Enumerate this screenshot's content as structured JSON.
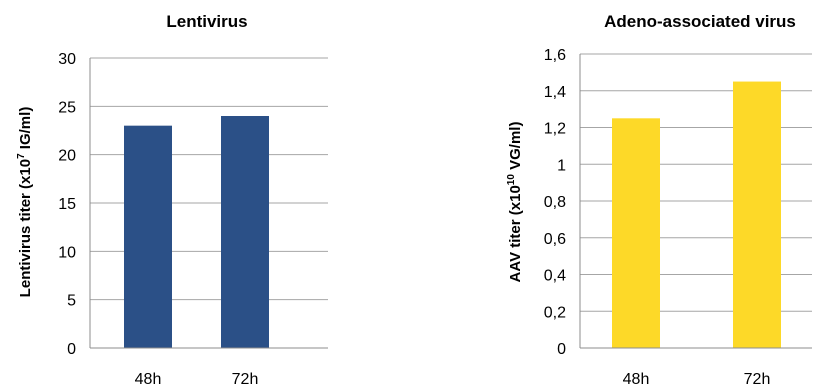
{
  "chart_data": [
    {
      "type": "bar",
      "title": "Lentivirus",
      "ylabel": "Lentivirus titer (x10⁷ IG/ml)",
      "ylabel_parts": {
        "before": "Lentivirus titer (x10",
        "sup": "7",
        "after": " IG/ml)"
      },
      "categories": [
        "48h",
        "72h"
      ],
      "values": [
        23,
        24
      ],
      "ylim": [
        0,
        30
      ],
      "yticks": [
        0,
        5,
        10,
        15,
        20,
        25,
        30
      ],
      "ytick_labels": [
        "0",
        "5",
        "10",
        "15",
        "20",
        "25",
        "30"
      ],
      "grid": true,
      "color": "#2B5087"
    },
    {
      "type": "bar",
      "title": "Adeno-associated virus",
      "ylabel": "AAV titer (x10¹⁰ VG/ml)",
      "ylabel_parts": {
        "before": "AAV titer (x10",
        "sup": "10",
        "after": " VG/ml)"
      },
      "categories": [
        "48h",
        "72h"
      ],
      "values": [
        1.25,
        1.45
      ],
      "ylim": [
        0,
        1.6
      ],
      "yticks": [
        0,
        0.2,
        0.4,
        0.6,
        0.8,
        1.0,
        1.2,
        1.4,
        1.6
      ],
      "ytick_labels": [
        "0",
        "0,2",
        "0,4",
        "0,6",
        "0,8",
        "1",
        "1,2",
        "1,4",
        "1,6"
      ],
      "grid": true,
      "color": "#FDD928"
    }
  ]
}
